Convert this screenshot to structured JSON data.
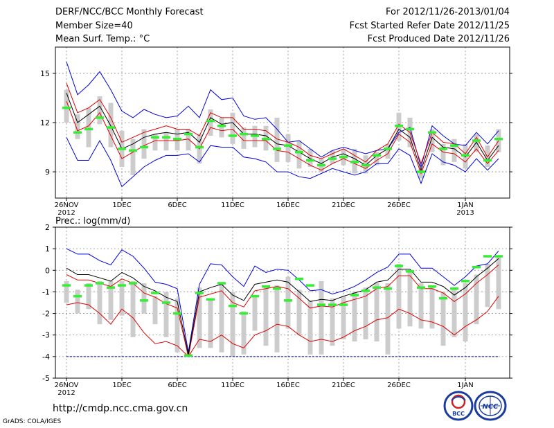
{
  "header": {
    "title": "DERF/NCC/BCC Monthly Forecast",
    "member_size": "Member Size=40",
    "variable": "Mean Surf. Temp.: °C",
    "period": "For 2012/11/26-2013/01/04",
    "fcst_started": "Fcst Started Refer Date 2012/11/25",
    "fcst_produced": "Fcst Produced Date 2012/11/26"
  },
  "footer": {
    "url": "http://cmdp.ncc.cma.gov.cn",
    "credit": "GrADS: COLA/IGES",
    "logo_bcc": "BCC",
    "logo_ncc": "NCC"
  },
  "colors": {
    "max_min": "#0000dd",
    "quartile": "#dd0000",
    "mean": "#000000",
    "median": "#33ee33",
    "box": "#cccccc",
    "floor": "#000080"
  },
  "chart_data": [
    {
      "type": "box-ensemble",
      "panel": "top",
      "ylabel": "",
      "ylim": [
        7.4,
        16.6
      ],
      "yticks": [
        9,
        12,
        15
      ],
      "xlim": [
        0,
        40
      ],
      "xticks": [
        {
          "x": 0,
          "label": "26NOV",
          "sub": "2012"
        },
        {
          "x": 5,
          "label": "1DEC",
          "sub": ""
        },
        {
          "x": 10,
          "label": "6DEC",
          "sub": ""
        },
        {
          "x": 15,
          "label": "11DEC",
          "sub": ""
        },
        {
          "x": 20,
          "label": "16DEC",
          "sub": ""
        },
        {
          "x": 25,
          "label": "21DEC",
          "sub": ""
        },
        {
          "x": 30,
          "label": "26DEC",
          "sub": ""
        },
        {
          "x": 36,
          "label": "1JAN",
          "sub": "2013"
        }
      ],
      "grid": true,
      "max": [
        15.7,
        13.7,
        14.3,
        15.1,
        14.0,
        12.7,
        12.3,
        12.8,
        12.5,
        12.3,
        12.4,
        13.0,
        12.3,
        14.0,
        13.4,
        13.5,
        12.4,
        12.2,
        12.3,
        11.6,
        10.8,
        10.9,
        10.4,
        9.9,
        10.3,
        10.5,
        10.3,
        10.1,
        10.3,
        10.4,
        11.4,
        11.7,
        9.3,
        11.8,
        11.2,
        10.7,
        10.6,
        11.4,
        10.7,
        11.5
      ],
      "q3": [
        14.4,
        12.6,
        12.9,
        13.4,
        12.3,
        10.8,
        11.1,
        11.4,
        11.6,
        11.8,
        11.6,
        11.6,
        11.2,
        12.6,
        12.3,
        12.3,
        11.6,
        11.6,
        11.5,
        11.0,
        10.8,
        10.5,
        10.0,
        9.8,
        10.1,
        10.4,
        10.0,
        9.6,
        10.3,
        10.7,
        11.9,
        11.4,
        9.5,
        11.4,
        10.8,
        10.7,
        10.1,
        11.1,
        9.9,
        10.9
      ],
      "mean": [
        13.8,
        12.0,
        12.5,
        13.0,
        11.8,
        10.4,
        10.7,
        11.1,
        11.3,
        11.4,
        11.3,
        11.4,
        10.8,
        12.3,
        11.9,
        12.0,
        11.3,
        11.3,
        11.2,
        10.7,
        10.6,
        10.2,
        9.8,
        9.5,
        9.9,
        10.1,
        9.8,
        9.4,
        10.0,
        10.4,
        11.6,
        11.1,
        9.1,
        11.1,
        10.5,
        10.4,
        9.9,
        10.8,
        9.7,
        10.6
      ],
      "q1": [
        13.3,
        11.5,
        11.8,
        12.6,
        11.2,
        9.8,
        10.2,
        10.6,
        10.9,
        10.9,
        10.9,
        11.0,
        10.4,
        11.7,
        11.5,
        11.6,
        10.9,
        10.9,
        10.9,
        10.3,
        10.2,
        9.8,
        9.4,
        9.1,
        9.5,
        9.8,
        9.5,
        9.2,
        9.7,
        10.1,
        11.3,
        10.8,
        8.9,
        10.7,
        10.2,
        10.1,
        9.6,
        10.4,
        9.5,
        10.3
      ],
      "min": [
        11.1,
        9.7,
        9.7,
        10.9,
        9.7,
        8.1,
        8.7,
        9.3,
        9.7,
        10.0,
        10.0,
        10.1,
        9.6,
        10.6,
        10.5,
        10.5,
        9.9,
        9.8,
        9.6,
        9.0,
        9.0,
        8.7,
        8.6,
        8.9,
        9.2,
        9.0,
        8.8,
        9.0,
        9.5,
        9.5,
        10.4,
        10.0,
        8.3,
        10.1,
        9.6,
        9.4,
        9.0,
        9.8,
        9.1,
        9.8
      ],
      "box_top": [
        14.0,
        12.5,
        12.9,
        13.6,
        13.2,
        11.5,
        11.0,
        11.6,
        11.3,
        11.4,
        11.6,
        11.6,
        11.3,
        12.8,
        12.3,
        12.6,
        11.7,
        11.8,
        11.8,
        12.3,
        11.3,
        10.9,
        10.4,
        9.8,
        10.3,
        10.4,
        10.4,
        10.0,
        10.2,
        10.7,
        12.6,
        12.3,
        9.2,
        11.6,
        10.7,
        11.0,
        10.7,
        11.3,
        10.6,
        11.6
      ],
      "box_bot": [
        12.0,
        11.0,
        10.5,
        11.9,
        10.5,
        9.3,
        8.8,
        9.8,
        10.3,
        10.3,
        10.3,
        10.3,
        9.5,
        11.2,
        11.1,
        10.7,
        10.4,
        10.5,
        10.3,
        9.6,
        9.6,
        9.2,
        9.3,
        9.0,
        9.5,
        9.4,
        8.9,
        8.9,
        9.4,
        9.8,
        10.9,
        10.5,
        8.6,
        10.2,
        9.4,
        9.6,
        9.2,
        10.2,
        9.3,
        10.2
      ],
      "median": [
        12.9,
        11.4,
        11.6,
        12.3,
        11.7,
        10.4,
        10.3,
        10.5,
        11.1,
        11.1,
        11.0,
        11.3,
        10.5,
        12.1,
        11.8,
        11.2,
        11.3,
        11.2,
        11.0,
        10.4,
        10.6,
        10.2,
        9.7,
        9.4,
        9.8,
        9.9,
        9.6,
        9.4,
        10.0,
        10.4,
        11.8,
        11.6,
        9.0,
        11.4,
        10.4,
        10.6,
        10.0,
        10.9,
        9.7,
        11.0
      ]
    },
    {
      "type": "box-ensemble",
      "panel": "bottom",
      "ylabel": "Prec.: log(mm/d)",
      "ylim": [
        -5,
        2
      ],
      "yticks": [
        -5,
        -4,
        -3,
        -2,
        -1,
        0,
        1,
        2
      ],
      "xlim": [
        0,
        40
      ],
      "xticks": [
        {
          "x": 0,
          "label": "26NOV",
          "sub": "2012"
        },
        {
          "x": 5,
          "label": "1DEC",
          "sub": ""
        },
        {
          "x": 10,
          "label": "6DEC",
          "sub": ""
        },
        {
          "x": 15,
          "label": "11DEC",
          "sub": ""
        },
        {
          "x": 20,
          "label": "16DEC",
          "sub": ""
        },
        {
          "x": 25,
          "label": "21DEC",
          "sub": ""
        },
        {
          "x": 30,
          "label": "26DEC",
          "sub": ""
        },
        {
          "x": 36,
          "label": "1JAN",
          "sub": ""
        }
      ],
      "grid": true,
      "floor": -4,
      "max": [
        1.0,
        0.75,
        0.75,
        0.45,
        0.25,
        0.95,
        0.65,
        0.1,
        -0.55,
        -0.65,
        -0.85,
        -3.8,
        -0.65,
        0.3,
        0.25,
        -0.3,
        -0.75,
        0.2,
        -0.1,
        0.05,
        0.0,
        -0.45,
        -0.95,
        -0.9,
        -1.1,
        -0.95,
        -0.75,
        -0.45,
        -0.1,
        0.15,
        0.75,
        0.75,
        0.1,
        0.1,
        -0.3,
        -0.7,
        -0.3,
        0.2,
        0.3,
        0.9
      ],
      "q3": [
        -0.2,
        -0.45,
        -0.45,
        -0.6,
        -0.75,
        -0.4,
        -0.6,
        -1.05,
        -1.25,
        -1.55,
        -1.75,
        -4.0,
        -1.25,
        -1.1,
        -0.95,
        -1.5,
        -1.7,
        -0.95,
        -0.85,
        -0.75,
        -0.85,
        -1.3,
        -1.75,
        -1.65,
        -1.7,
        -1.5,
        -1.35,
        -1.2,
        -0.85,
        -0.75,
        -0.25,
        -0.25,
        -0.85,
        -0.85,
        -1.05,
        -1.45,
        -1.1,
        -0.6,
        -0.2,
        0.25
      ],
      "mean": [
        0.1,
        -0.2,
        -0.2,
        -0.35,
        -0.5,
        -0.1,
        -0.35,
        -0.75,
        -0.95,
        -1.25,
        -1.45,
        -3.9,
        -1.0,
        -0.8,
        -0.65,
        -1.15,
        -1.4,
        -0.65,
        -0.55,
        -0.45,
        -0.55,
        -1.0,
        -1.45,
        -1.35,
        -1.4,
        -1.2,
        -1.05,
        -0.9,
        -0.55,
        -0.45,
        0.05,
        0.05,
        -0.55,
        -0.55,
        -0.75,
        -1.15,
        -0.8,
        -0.3,
        0.1,
        0.55
      ],
      "q1": [
        -1.6,
        -1.5,
        -1.6,
        -2.0,
        -2.5,
        -1.8,
        -2.2,
        -2.9,
        -3.4,
        -3.3,
        -3.5,
        -4.0,
        -3.2,
        -3.3,
        -3.0,
        -3.4,
        -3.6,
        -3.0,
        -2.8,
        -2.5,
        -2.6,
        -3.0,
        -3.3,
        -3.2,
        -3.3,
        -3.1,
        -2.8,
        -2.6,
        -2.3,
        -2.2,
        -1.8,
        -2.0,
        -2.3,
        -2.4,
        -2.6,
        -3.0,
        -2.6,
        -2.3,
        -1.9,
        -1.2
      ],
      "min": [
        -4.0,
        -4.0,
        -4.0,
        -4.0,
        -4.0,
        -4.0,
        -4.0,
        -4.0,
        -4.0,
        -4.0,
        -4.0,
        -4.0,
        -4.0,
        -4.0,
        -4.0,
        -4.0,
        -4.0,
        -4.0,
        -4.0,
        -4.0,
        -4.0,
        -4.0,
        -4.0,
        -4.0,
        -4.0,
        -4.0,
        -4.0,
        -4.0,
        -4.0,
        -4.0,
        -4.0,
        -4.0,
        -4.0,
        -4.0,
        -4.0,
        -4.0,
        -4.0,
        -4.0,
        -4.0,
        -4.0
      ],
      "box_top": [
        -0.5,
        -0.9,
        -0.6,
        -0.5,
        -0.5,
        -0.5,
        -0.5,
        -0.6,
        -1.2,
        -1.0,
        -1.3,
        -3.8,
        -0.8,
        -1.3,
        -0.6,
        -1.0,
        -1.9,
        -1.2,
        -0.7,
        -0.7,
        -0.3,
        -0.9,
        -1.4,
        -0.5,
        -1.3,
        -1.2,
        -1.0,
        -0.8,
        -0.6,
        -0.6,
        0.3,
        0.0,
        -0.6,
        -0.7,
        -1.0,
        -0.8,
        -0.6,
        -0.2,
        0.3,
        0.6
      ],
      "box_bot": [
        -1.5,
        -2.0,
        -1.8,
        -2.5,
        -2.3,
        -2.1,
        -3.1,
        -2.0,
        -2.5,
        -3.1,
        -3.8,
        -4.0,
        -3.6,
        -3.6,
        -3.8,
        -4.0,
        -3.9,
        -2.8,
        -3.5,
        -3.8,
        -2.7,
        -3.0,
        -3.9,
        -3.9,
        -3.5,
        -3.2,
        -3.3,
        -3.2,
        -3.3,
        -3.9,
        -2.7,
        -2.6,
        -2.7,
        -2.7,
        -3.5,
        -3.1,
        -3.3,
        -2.5,
        -1.7,
        -1.8
      ],
      "median": [
        -0.7,
        -1.2,
        -0.7,
        -0.6,
        -0.8,
        -0.7,
        -0.6,
        -1.4,
        -1.05,
        -1.5,
        -2.0,
        -3.95,
        -1.05,
        -1.35,
        -0.6,
        -1.65,
        -2.0,
        -1.2,
        -0.75,
        -0.85,
        -1.4,
        -0.4,
        -0.7,
        -1.6,
        -1.6,
        -1.6,
        -1.15,
        -0.95,
        -0.8,
        -0.85,
        0.2,
        -0.05,
        -0.8,
        -0.75,
        -1.3,
        -0.85,
        -0.5,
        0.15,
        0.65,
        0.65
      ]
    }
  ]
}
